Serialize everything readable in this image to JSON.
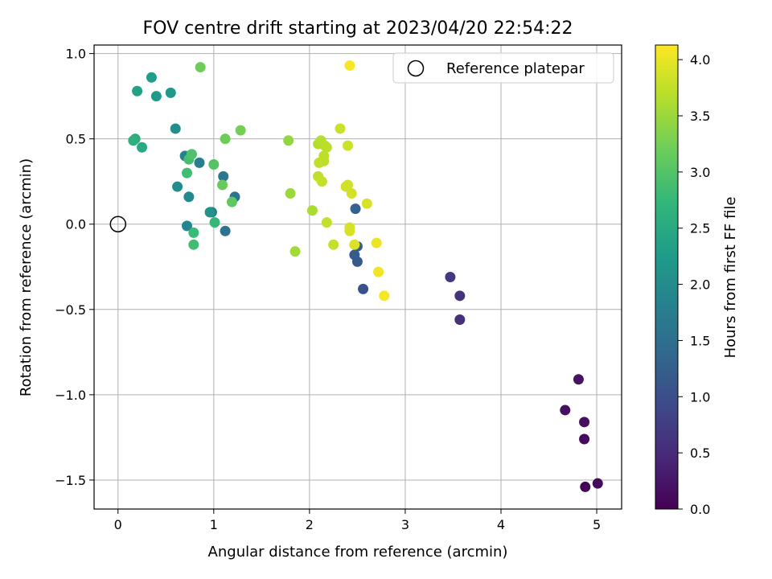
{
  "chart_data": {
    "type": "scatter",
    "title": "FOV centre drift starting at 2023/04/20 22:54:22",
    "xlabel": "Angular distance from reference (arcmin)",
    "ylabel": "Rotation from reference (arcmin)",
    "xlim": [
      -0.25,
      5.26
    ],
    "ylim": [
      -1.67,
      1.05
    ],
    "xticks": [
      0,
      1,
      2,
      3,
      4,
      5
    ],
    "yticks": [
      -1.5,
      -1.0,
      -0.5,
      0.0,
      0.5,
      1.0
    ],
    "xtick_labels": [
      "0",
      "1",
      "2",
      "3",
      "4",
      "5"
    ],
    "ytick_labels": [
      "−1.5",
      "−1.0",
      "−0.5",
      "0.0",
      "0.5",
      "1.0"
    ],
    "grid": true,
    "legend": {
      "position": "top-right",
      "entries": [
        "Reference platepar"
      ]
    },
    "colormap": "viridis",
    "colorbar": {
      "label": "Hours from first FF file",
      "range": [
        0.0,
        4.13
      ],
      "ticks": [
        0.0,
        0.5,
        1.0,
        1.5,
        2.0,
        2.5,
        3.0,
        3.5,
        4.0
      ],
      "tick_labels": [
        "0.0",
        "0.5",
        "1.0",
        "1.5",
        "2.0",
        "2.5",
        "3.0",
        "3.5",
        "4.0"
      ]
    },
    "reference_point": {
      "name": "Reference platepar",
      "x": 0.0,
      "y": 0.0
    },
    "series": [
      {
        "points": [
          {
            "x": 4.88,
            "y": -1.54,
            "c": 0.05
          },
          {
            "x": 5.01,
            "y": -1.52,
            "c": 0.08
          },
          {
            "x": 4.87,
            "y": -1.26,
            "c": 0.12
          },
          {
            "x": 4.87,
            "y": -1.16,
            "c": 0.15
          },
          {
            "x": 4.67,
            "y": -1.09,
            "c": 0.18
          },
          {
            "x": 4.81,
            "y": -0.91,
            "c": 0.22
          },
          {
            "x": 3.57,
            "y": -0.56,
            "c": 0.55
          },
          {
            "x": 3.57,
            "y": -0.42,
            "c": 0.6
          },
          {
            "x": 3.47,
            "y": -0.31,
            "c": 0.7
          },
          {
            "x": 2.56,
            "y": -0.38,
            "c": 1.05
          },
          {
            "x": 2.5,
            "y": -0.22,
            "c": 1.15
          },
          {
            "x": 2.47,
            "y": -0.18,
            "c": 1.18
          },
          {
            "x": 2.5,
            "y": -0.13,
            "c": 1.2
          },
          {
            "x": 2.48,
            "y": 0.09,
            "c": 1.28
          },
          {
            "x": 1.12,
            "y": -0.04,
            "c": 1.55
          },
          {
            "x": 1.22,
            "y": 0.16,
            "c": 1.6
          },
          {
            "x": 1.1,
            "y": 0.28,
            "c": 1.65
          },
          {
            "x": 0.98,
            "y": 0.07,
            "c": 1.7
          },
          {
            "x": 0.85,
            "y": 0.36,
            "c": 1.75
          },
          {
            "x": 0.7,
            "y": 0.4,
            "c": 1.85
          },
          {
            "x": 0.72,
            "y": -0.01,
            "c": 1.9
          },
          {
            "x": 0.74,
            "y": 0.16,
            "c": 1.95
          },
          {
            "x": 0.62,
            "y": 0.22,
            "c": 2.0
          },
          {
            "x": 0.6,
            "y": 0.56,
            "c": 2.05
          },
          {
            "x": 0.96,
            "y": 0.07,
            "c": 2.1
          },
          {
            "x": 0.55,
            "y": 0.77,
            "c": 2.2
          },
          {
            "x": 0.4,
            "y": 0.75,
            "c": 2.25
          },
          {
            "x": 0.35,
            "y": 0.86,
            "c": 2.3
          },
          {
            "x": 0.2,
            "y": 0.78,
            "c": 2.35
          },
          {
            "x": 0.25,
            "y": 0.45,
            "c": 2.5
          },
          {
            "x": 0.18,
            "y": 0.5,
            "c": 2.55
          },
          {
            "x": 0.16,
            "y": 0.49,
            "c": 2.6
          },
          {
            "x": 1.01,
            "y": 0.01,
            "c": 2.75
          },
          {
            "x": 0.79,
            "y": -0.05,
            "c": 2.8
          },
          {
            "x": 0.79,
            "y": -0.12,
            "c": 2.85
          },
          {
            "x": 0.72,
            "y": 0.3,
            "c": 2.85
          },
          {
            "x": 0.74,
            "y": 0.38,
            "c": 2.9
          },
          {
            "x": 0.77,
            "y": 0.41,
            "c": 2.95
          },
          {
            "x": 1.0,
            "y": 0.35,
            "c": 3.0
          },
          {
            "x": 1.19,
            "y": 0.13,
            "c": 3.1
          },
          {
            "x": 1.09,
            "y": 0.23,
            "c": 3.15
          },
          {
            "x": 1.12,
            "y": 0.5,
            "c": 3.2
          },
          {
            "x": 1.28,
            "y": 0.55,
            "c": 3.25
          },
          {
            "x": 0.86,
            "y": 0.92,
            "c": 3.2
          },
          {
            "x": 1.78,
            "y": 0.49,
            "c": 3.45
          },
          {
            "x": 1.8,
            "y": 0.18,
            "c": 3.5
          },
          {
            "x": 1.85,
            "y": -0.16,
            "c": 3.55
          },
          {
            "x": 2.03,
            "y": 0.08,
            "c": 3.6
          },
          {
            "x": 2.09,
            "y": 0.47,
            "c": 3.65
          },
          {
            "x": 2.12,
            "y": 0.49,
            "c": 3.68
          },
          {
            "x": 2.16,
            "y": 0.46,
            "c": 3.7
          },
          {
            "x": 2.18,
            "y": 0.45,
            "c": 3.7
          },
          {
            "x": 2.15,
            "y": 0.4,
            "c": 3.72
          },
          {
            "x": 2.15,
            "y": 0.37,
            "c": 3.72
          },
          {
            "x": 2.1,
            "y": 0.36,
            "c": 3.74
          },
          {
            "x": 2.09,
            "y": 0.28,
            "c": 3.74
          },
          {
            "x": 2.13,
            "y": 0.25,
            "c": 3.76
          },
          {
            "x": 2.18,
            "y": 0.01,
            "c": 3.76
          },
          {
            "x": 2.25,
            "y": -0.12,
            "c": 3.78
          },
          {
            "x": 2.32,
            "y": 0.56,
            "c": 3.8
          },
          {
            "x": 2.4,
            "y": 0.46,
            "c": 3.82
          },
          {
            "x": 2.38,
            "y": 0.22,
            "c": 3.84
          },
          {
            "x": 2.4,
            "y": 0.23,
            "c": 3.84
          },
          {
            "x": 2.44,
            "y": 0.18,
            "c": 3.86
          },
          {
            "x": 2.42,
            "y": -0.02,
            "c": 3.86
          },
          {
            "x": 2.42,
            "y": -0.04,
            "c": 3.88
          },
          {
            "x": 2.47,
            "y": -0.12,
            "c": 3.9
          },
          {
            "x": 2.6,
            "y": 0.12,
            "c": 3.9
          },
          {
            "x": 2.7,
            "y": -0.11,
            "c": 4.02
          },
          {
            "x": 2.72,
            "y": -0.28,
            "c": 4.05
          },
          {
            "x": 2.78,
            "y": -0.42,
            "c": 4.08
          },
          {
            "x": 2.42,
            "y": 0.93,
            "c": 4.1
          }
        ]
      }
    ]
  }
}
